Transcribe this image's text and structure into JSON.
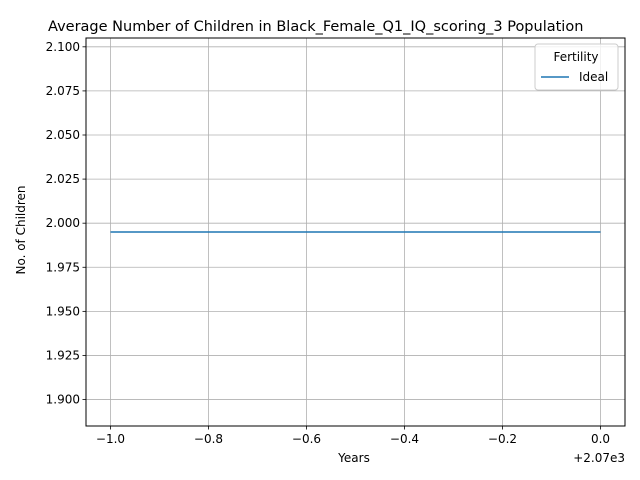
{
  "chart_data": {
    "type": "line",
    "title": "Average Number of Children in Black_Female_Q1_IQ_scoring_3 Population",
    "xlabel": "Years",
    "ylabel": "No. of Children",
    "x_offset_label": "+2.07e3",
    "xlim": [
      -1.05,
      0.05
    ],
    "ylim": [
      1.885,
      2.105
    ],
    "x_ticks": [
      -1.0,
      -0.8,
      -0.6,
      -0.4,
      -0.2,
      0.0
    ],
    "x_tick_labels": [
      "−1.0",
      "−0.8",
      "−0.6",
      "−0.4",
      "−0.2",
      "0.0"
    ],
    "y_ticks": [
      1.9,
      1.925,
      1.95,
      1.975,
      2.0,
      2.025,
      2.05,
      2.075,
      2.1
    ],
    "y_tick_labels": [
      "1.900",
      "1.925",
      "1.950",
      "1.975",
      "2.000",
      "2.025",
      "2.050",
      "2.075",
      "2.100"
    ],
    "grid": true,
    "legend": {
      "title": "Fertility",
      "placement": "top-right"
    },
    "series": [
      {
        "name": "Ideal",
        "color": "#1f77b4",
        "x": [
          -1.0,
          0.0
        ],
        "y": [
          1.995,
          1.995
        ]
      }
    ]
  }
}
